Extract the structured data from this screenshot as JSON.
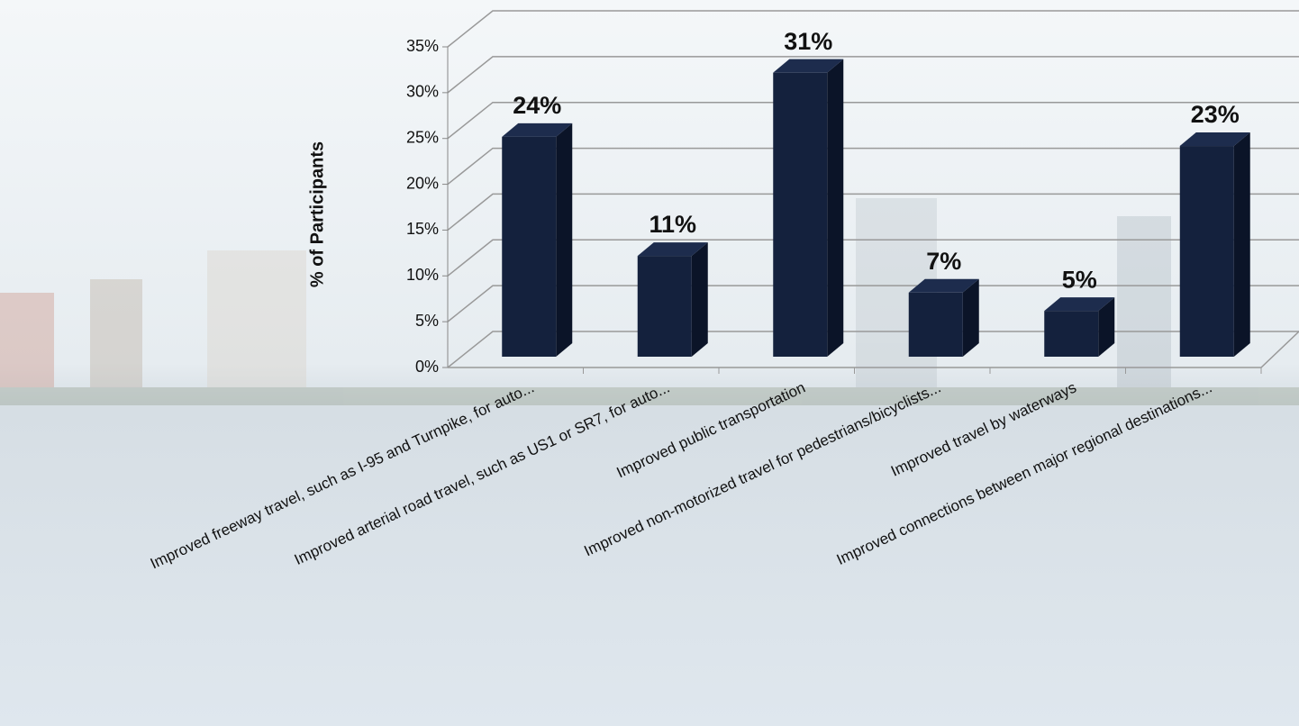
{
  "chart_data": {
    "type": "bar3d",
    "y_label": "% of Participants",
    "categories": [
      "Improved freeway travel, such as I-95 and Turnpike, for auto...",
      "Improved arterial road travel, such as US1 or SR7, for auto...",
      "Improved public transportation",
      "Improved non-motorized travel for pedestrians/bicyclists...",
      "Improved travel by waterways",
      "Improved connections between major regional destinations..."
    ],
    "values": [
      24,
      11,
      31,
      7,
      5,
      23
    ],
    "value_labels": [
      "24%",
      "11%",
      "31%",
      "7%",
      "5%",
      "23%"
    ],
    "color": "#14213d",
    "ylim": [
      0,
      35
    ],
    "yticks": [
      {
        "value": 0,
        "label": "0%"
      },
      {
        "value": 5,
        "label": "5%"
      },
      {
        "value": 10,
        "label": "10%"
      },
      {
        "value": 15,
        "label": "15%"
      },
      {
        "value": 20,
        "label": "20%"
      },
      {
        "value": 25,
        "label": "25%"
      },
      {
        "value": 30,
        "label": "30%"
      },
      {
        "value": 35,
        "label": "35%"
      }
    ],
    "grid": true
  }
}
